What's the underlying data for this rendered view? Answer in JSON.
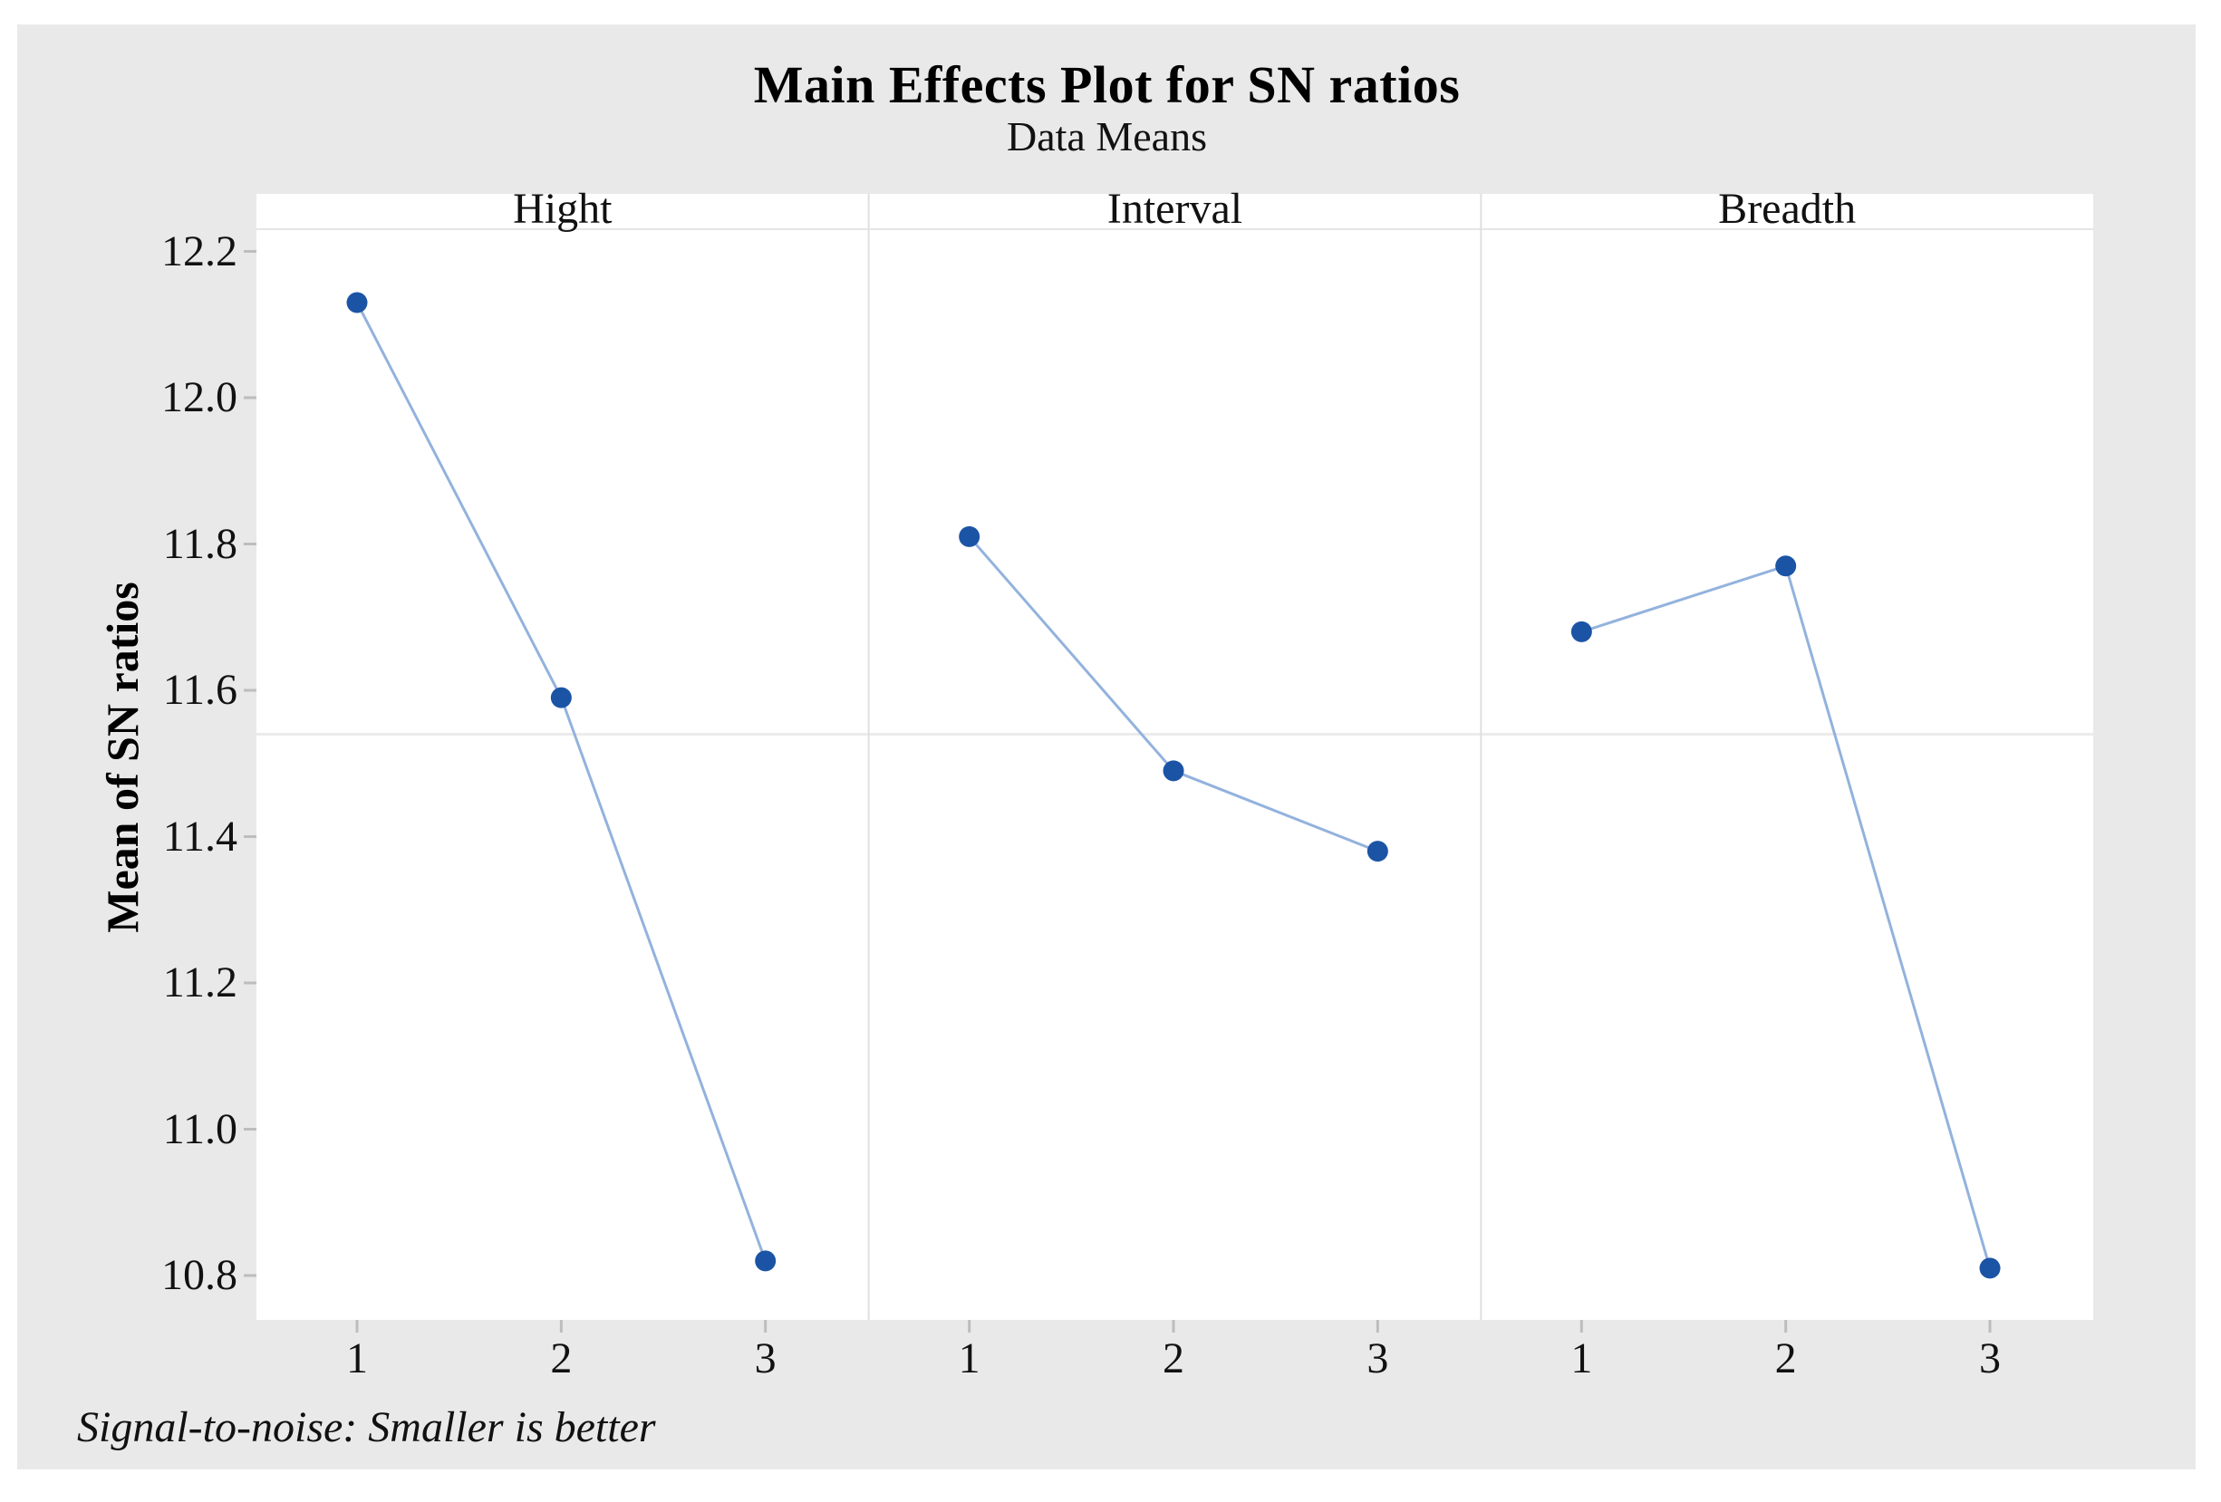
{
  "title": "Main Effects Plot for SN ratios",
  "subtitle": "Data Means",
  "footnote": "Signal-to-noise: Smaller is better",
  "y_axis": {
    "label": "Mean of SN ratios",
    "tick_labels": [
      "12.2",
      "12.0",
      "11.8",
      "11.6",
      "11.4",
      "11.2",
      "11.0",
      "10.8"
    ]
  },
  "x_axis": {
    "tick_labels": [
      "1",
      "2",
      "3"
    ]
  },
  "chart_data": {
    "type": "line",
    "title": "Main Effects Plot for SN ratios",
    "subtitle": "Data Means",
    "ylabel": "Mean of SN ratios",
    "categories": [
      "1",
      "2",
      "3"
    ],
    "panels": [
      {
        "factor": "Hight",
        "levels": [
          "1",
          "2",
          "3"
        ],
        "means": [
          12.13,
          11.59,
          10.82
        ]
      },
      {
        "factor": "Interval",
        "levels": [
          "1",
          "2",
          "3"
        ],
        "means": [
          11.81,
          11.49,
          11.38
        ]
      },
      {
        "factor": "Breadth",
        "levels": [
          "1",
          "2",
          "3"
        ],
        "means": [
          11.68,
          11.77,
          10.81
        ]
      }
    ],
    "series": [
      {
        "name": "Hight",
        "values": [
          12.13,
          11.59,
          10.82
        ]
      },
      {
        "name": "Interval",
        "values": [
          11.81,
          11.49,
          11.38
        ]
      },
      {
        "name": "Breadth",
        "values": [
          11.68,
          11.77,
          10.81
        ]
      }
    ],
    "yticks": [
      12.2,
      12.0,
      11.8,
      11.6,
      11.4,
      11.2,
      11.0,
      10.8
    ],
    "ylim": [
      10.74,
      12.28
    ],
    "reference_line_mean": 11.54,
    "legend": "none",
    "grid": "single faint horizontal reference line at overall mean",
    "annotation": "Signal-to-noise: Smaller is better",
    "colors": {
      "marker": "#1b54a5",
      "connector_line": "#93b2dd",
      "figure_background": "#e9e9e9",
      "panel_background": "#ffffff",
      "reference_line": "#ececec",
      "panel_separator": "#e0e0e0",
      "header_underline": "#e5e5e5",
      "tick": "#bdbdbd",
      "text": "#111111"
    }
  }
}
